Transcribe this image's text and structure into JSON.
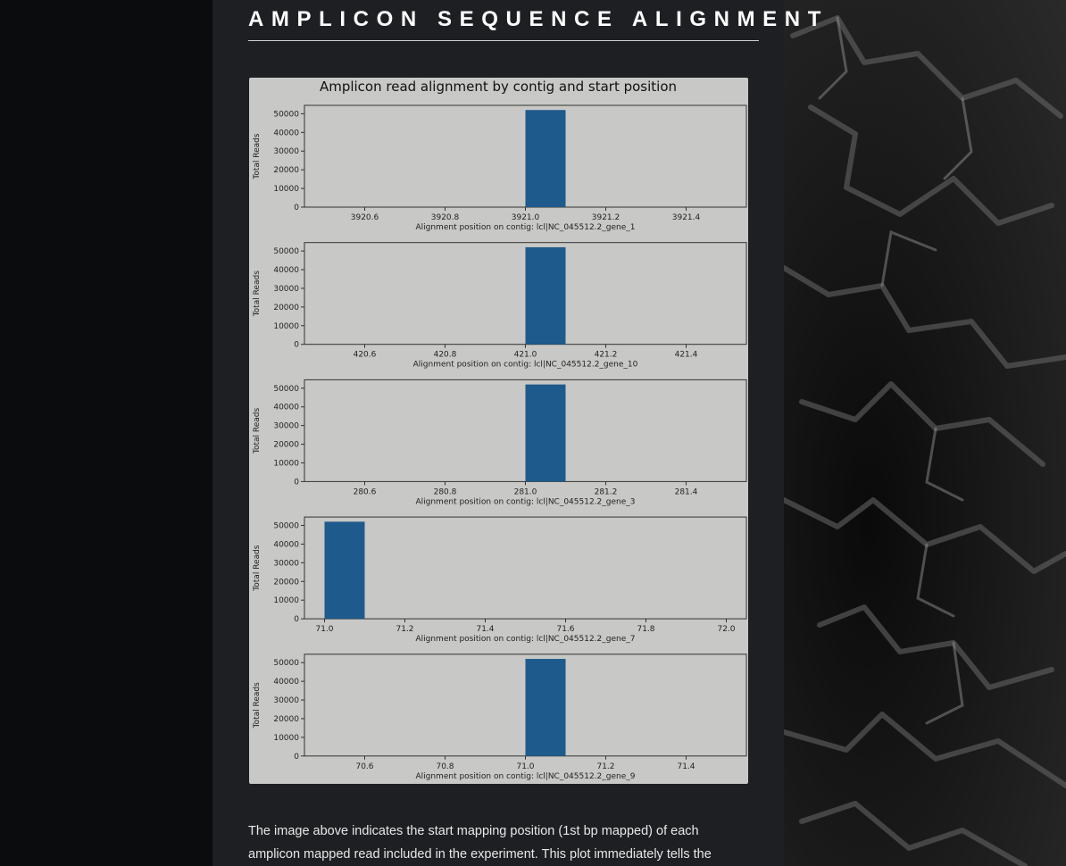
{
  "page": {
    "section_title": "AMPLICON SEQUENCE ALIGNMENT",
    "paragraph": [
      "The image above indicates the start mapping position (1st bp mapped) of each",
      "amplicon mapped read included in the experiment. This plot immediately tells the"
    ]
  },
  "colors": {
    "bar": "#1f5a8c",
    "plot_bg": "#c8c8c6",
    "page_bg": "#1e1f22"
  },
  "chart_data": {
    "type": "bar",
    "title": "Amplicon read alignment by contig and start position",
    "ylabel": "Total Reads",
    "grid": false,
    "panels": [
      {
        "xlabel": "Alignment position on contig: lcl|NC_045512.2_gene_1",
        "x_ticks": [
          "3920.6",
          "3920.8",
          "3921.0",
          "3921.2",
          "3921.4"
        ],
        "x_tick_values": [
          3920.6,
          3920.8,
          3921.0,
          3921.2,
          3921.4
        ],
        "xlim": [
          3920.45,
          3921.55
        ],
        "y_ticks": [
          "0",
          "10000",
          "20000",
          "30000",
          "40000",
          "50000"
        ],
        "y_tick_values": [
          0,
          10000,
          20000,
          30000,
          40000,
          50000
        ],
        "ylim": [
          0,
          54500
        ],
        "bars": [
          {
            "start": 3921.0,
            "width": 0.1,
            "value": 52000
          }
        ]
      },
      {
        "xlabel": "Alignment position on contig: lcl|NC_045512.2_gene_10",
        "x_ticks": [
          "420.6",
          "420.8",
          "421.0",
          "421.2",
          "421.4"
        ],
        "x_tick_values": [
          420.6,
          420.8,
          421.0,
          421.2,
          421.4
        ],
        "xlim": [
          420.45,
          421.55
        ],
        "y_ticks": [
          "0",
          "10000",
          "20000",
          "30000",
          "40000",
          "50000"
        ],
        "y_tick_values": [
          0,
          10000,
          20000,
          30000,
          40000,
          50000
        ],
        "ylim": [
          0,
          54500
        ],
        "bars": [
          {
            "start": 421.0,
            "width": 0.1,
            "value": 52000
          }
        ]
      },
      {
        "xlabel": "Alignment position on contig: lcl|NC_045512.2_gene_3",
        "x_ticks": [
          "280.6",
          "280.8",
          "281.0",
          "281.2",
          "281.4"
        ],
        "x_tick_values": [
          280.6,
          280.8,
          281.0,
          281.2,
          281.4
        ],
        "xlim": [
          280.45,
          281.55
        ],
        "y_ticks": [
          "0",
          "10000",
          "20000",
          "30000",
          "40000",
          "50000"
        ],
        "y_tick_values": [
          0,
          10000,
          20000,
          30000,
          40000,
          50000
        ],
        "ylim": [
          0,
          54500
        ],
        "bars": [
          {
            "start": 281.0,
            "width": 0.1,
            "value": 52000
          }
        ]
      },
      {
        "xlabel": "Alignment position on contig: lcl|NC_045512.2_gene_7",
        "x_ticks": [
          "71.0",
          "71.2",
          "71.4",
          "71.6",
          "71.8",
          "72.0"
        ],
        "x_tick_values": [
          71.0,
          71.2,
          71.4,
          71.6,
          71.8,
          72.0
        ],
        "xlim": [
          70.95,
          72.05
        ],
        "y_ticks": [
          "0",
          "10000",
          "20000",
          "30000",
          "40000",
          "50000"
        ],
        "y_tick_values": [
          0,
          10000,
          20000,
          30000,
          40000,
          50000
        ],
        "ylim": [
          0,
          54500
        ],
        "bars": [
          {
            "start": 71.0,
            "width": 0.1,
            "value": 52000
          }
        ]
      },
      {
        "xlabel": "Alignment position on contig: lcl|NC_045512.2_gene_9",
        "x_ticks": [
          "70.6",
          "70.8",
          "71.0",
          "71.2",
          "71.4"
        ],
        "x_tick_values": [
          70.6,
          70.8,
          71.0,
          71.2,
          71.4
        ],
        "xlim": [
          70.45,
          71.55
        ],
        "y_ticks": [
          "0",
          "10000",
          "20000",
          "30000",
          "40000",
          "50000"
        ],
        "y_tick_values": [
          0,
          10000,
          20000,
          30000,
          40000,
          50000
        ],
        "ylim": [
          0,
          54500
        ],
        "bars": [
          {
            "start": 71.0,
            "width": 0.1,
            "value": 52000
          }
        ]
      }
    ]
  }
}
